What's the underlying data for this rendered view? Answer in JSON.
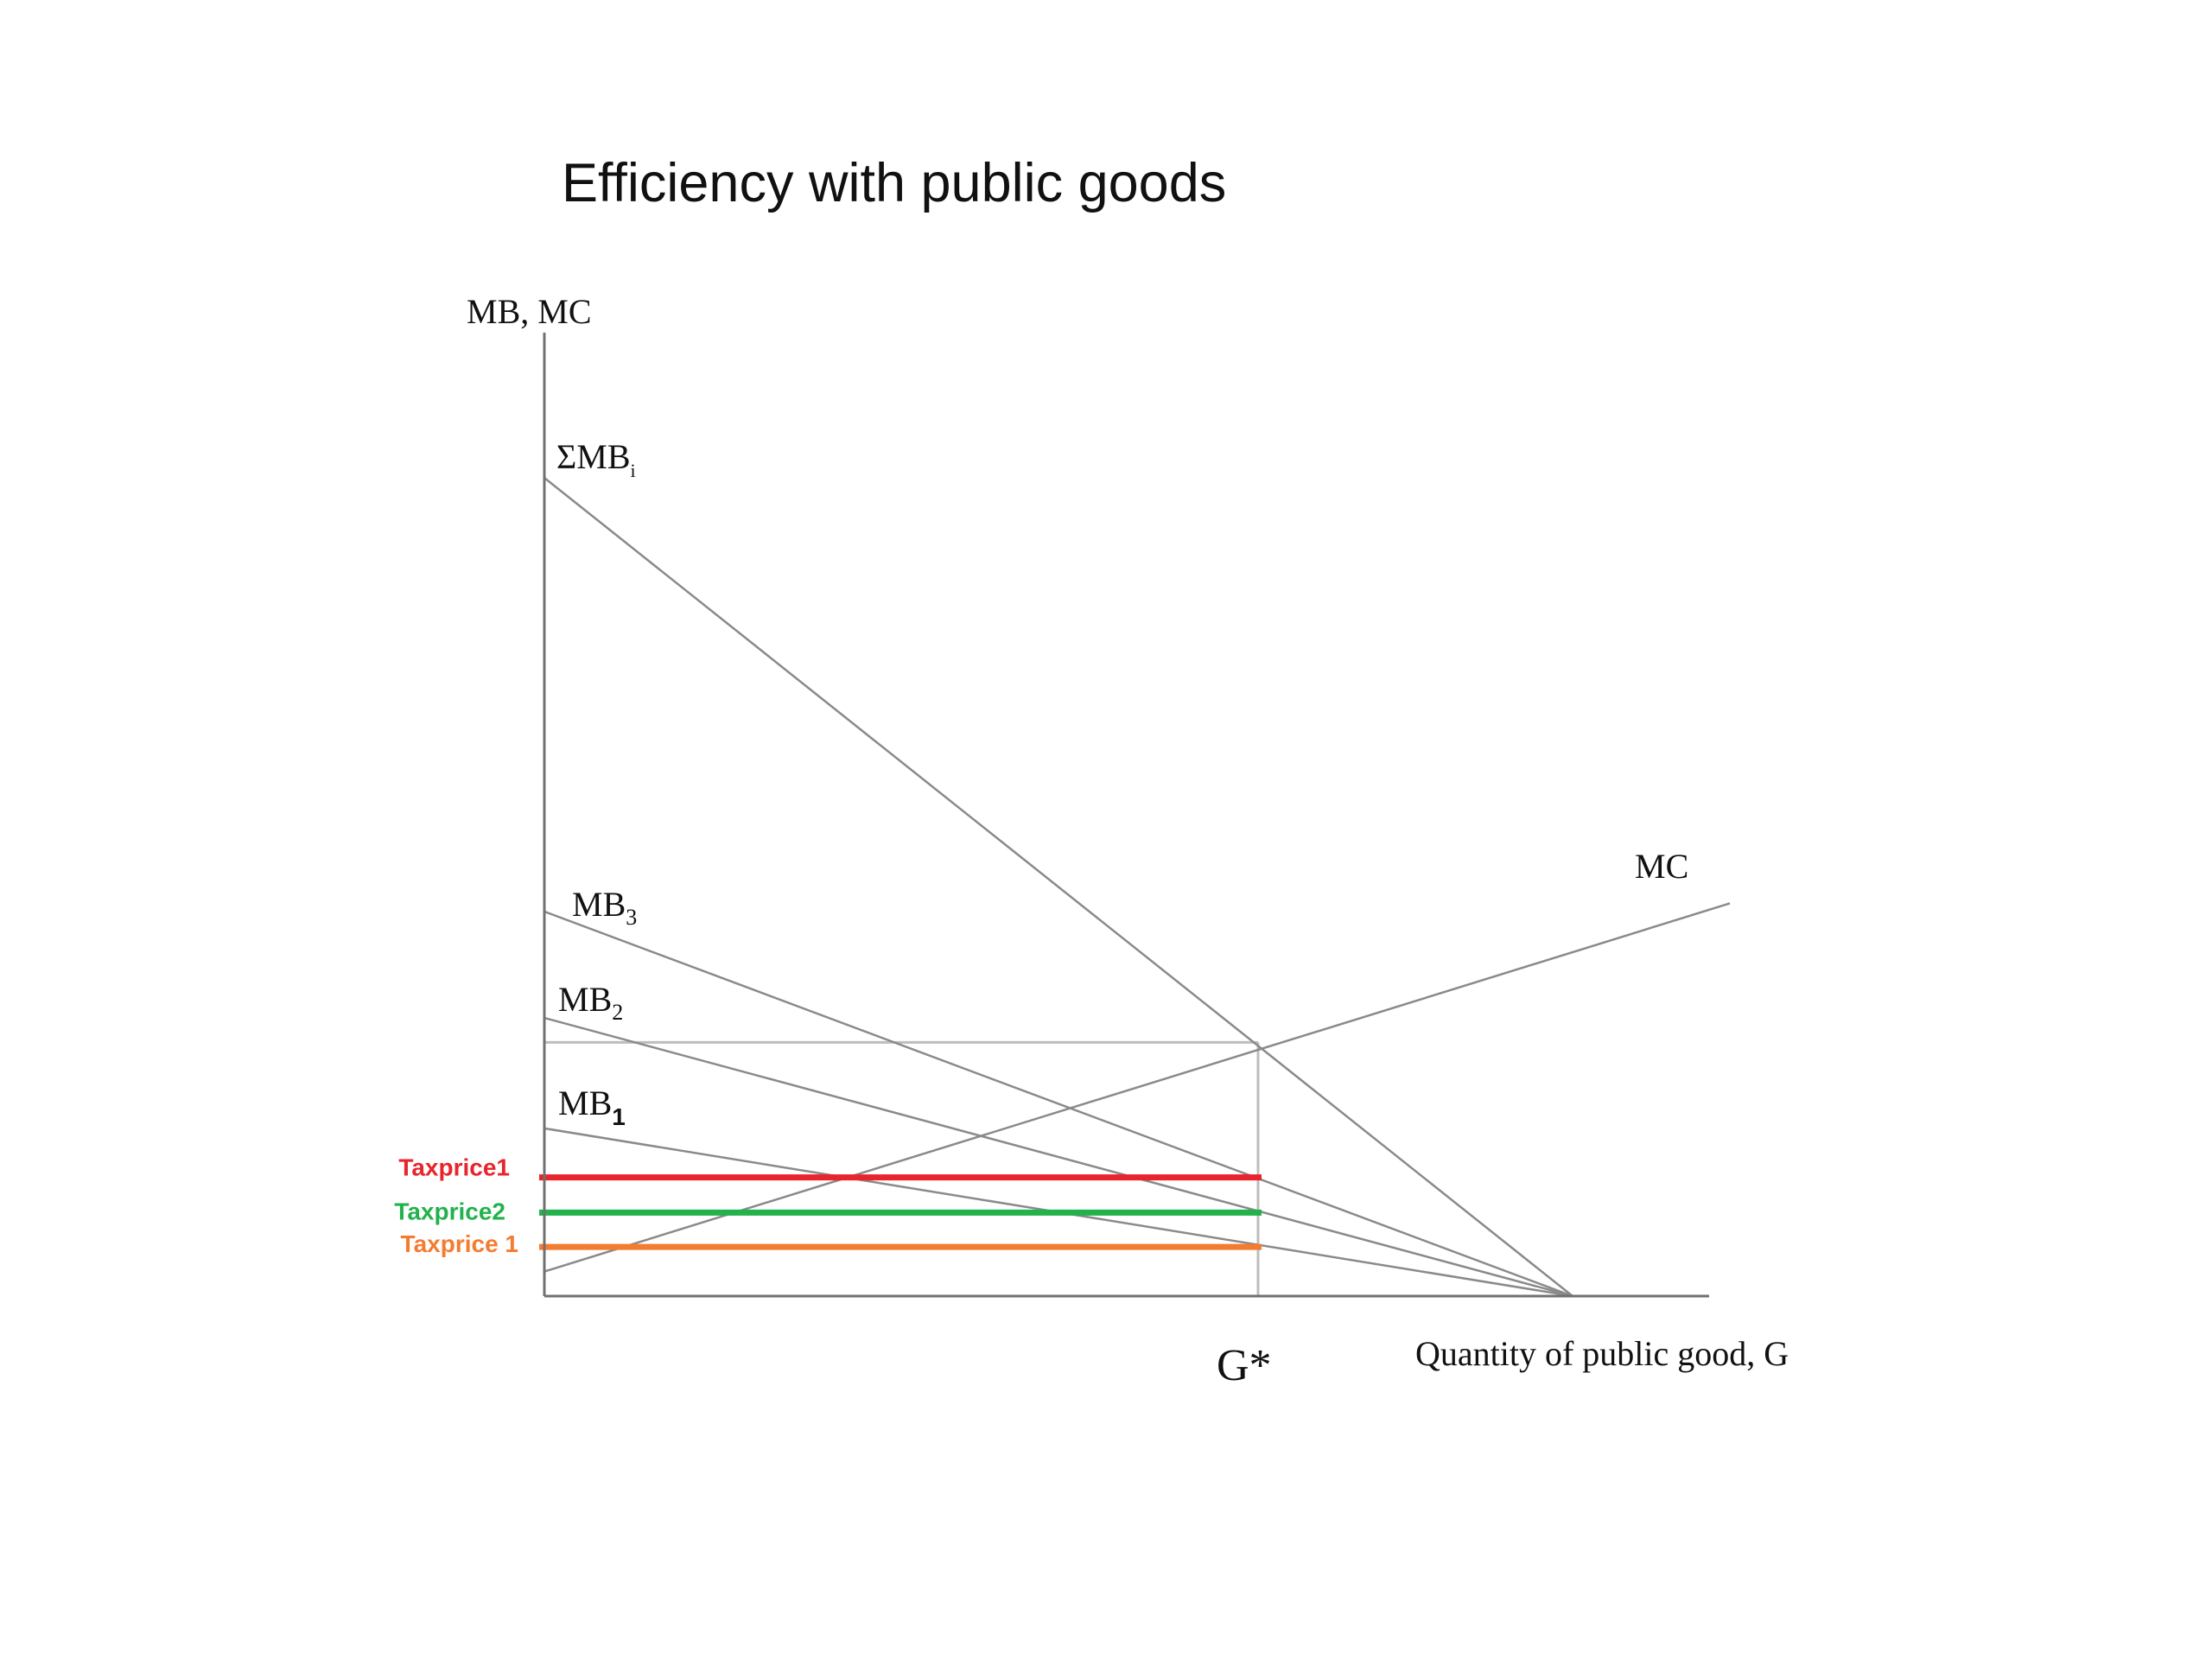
{
  "title": "Efficiency with public goods",
  "colors": {
    "axis": "#707070",
    "curve": "#8a8a8a",
    "guide": "#bdbdbd",
    "taxprice_red": "#e8242c",
    "taxprice_green": "#22b24c",
    "taxprice_orange": "#f47c30",
    "text": "#111111"
  },
  "chart_data": {
    "type": "line",
    "ylabel": "MB, MC",
    "xlabel": "Quantity of public good, G",
    "xlim": [
      0,
      100
    ],
    "ylim": [
      0,
      100
    ],
    "grid": false,
    "x_marker": {
      "label": "G*",
      "x": 59
    },
    "series": [
      {
        "name": "ΣMB",
        "subscript": "i",
        "x": [
          0,
          85
        ],
        "y": [
          100,
          0
        ]
      },
      {
        "name": "MB",
        "subscript": "3",
        "x": [
          0,
          85
        ],
        "y": [
          47,
          0
        ]
      },
      {
        "name": "MB",
        "subscript": "2",
        "x": [
          0,
          85
        ],
        "y": [
          34,
          0
        ]
      },
      {
        "name": "MB",
        "subscript": "1",
        "x": [
          0,
          85
        ],
        "y": [
          20.5,
          0
        ]
      },
      {
        "name": "MC",
        "x": [
          0,
          98
        ],
        "y": [
          3,
          48
        ]
      }
    ],
    "efficient_point": {
      "x": 59,
      "y": 31
    },
    "tax_prices": [
      {
        "label": "Taxprice1",
        "color": "#e8242c",
        "y": 14.5,
        "x_end": 59
      },
      {
        "label": "Taxprice2",
        "color": "#22b24c",
        "y": 10.2,
        "x_end": 59
      },
      {
        "label": "Taxprice 1",
        "color": "#f47c30",
        "y": 6,
        "x_end": 59
      }
    ]
  }
}
